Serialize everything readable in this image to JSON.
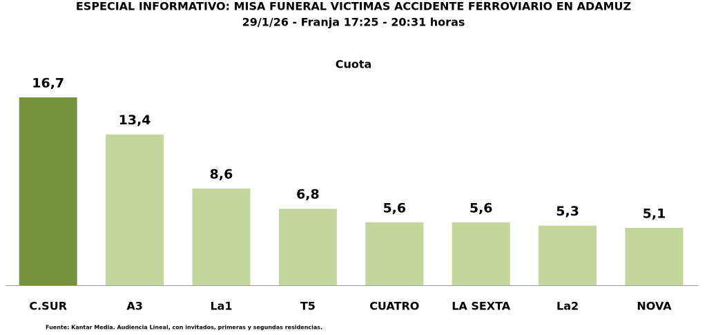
{
  "chart_data": {
    "type": "bar",
    "title": "ESPECIAL INFORMATIVO: MISA FUNERAL VICTIMAS ACCIDENTE FERROVIARIO EN ADAMUZ",
    "subtitle": "29/1/26 - Franja 17:25 - 20:31 horas",
    "series_label": "Cuota",
    "categories": [
      "C.SUR",
      "A3",
      "La1",
      "T5",
      "CUATRO",
      "LA SEXTA",
      "La2",
      "NOVA"
    ],
    "values": [
      16.7,
      13.4,
      8.6,
      6.8,
      5.6,
      5.6,
      5.3,
      5.1
    ],
    "value_labels": [
      "16,7",
      "13,4",
      "8,6",
      "6,8",
      "5,6",
      "5,6",
      "5,3",
      "5,1"
    ],
    "colors": [
      "#76923c",
      "#c3d69b",
      "#c3d69b",
      "#c3d69b",
      "#c3d69b",
      "#c3d69b",
      "#c3d69b",
      "#c3d69b"
    ],
    "source": "Fuente: Kantar Media. Audiencia Lineal, con invitados, primeras y segundas residencias."
  }
}
